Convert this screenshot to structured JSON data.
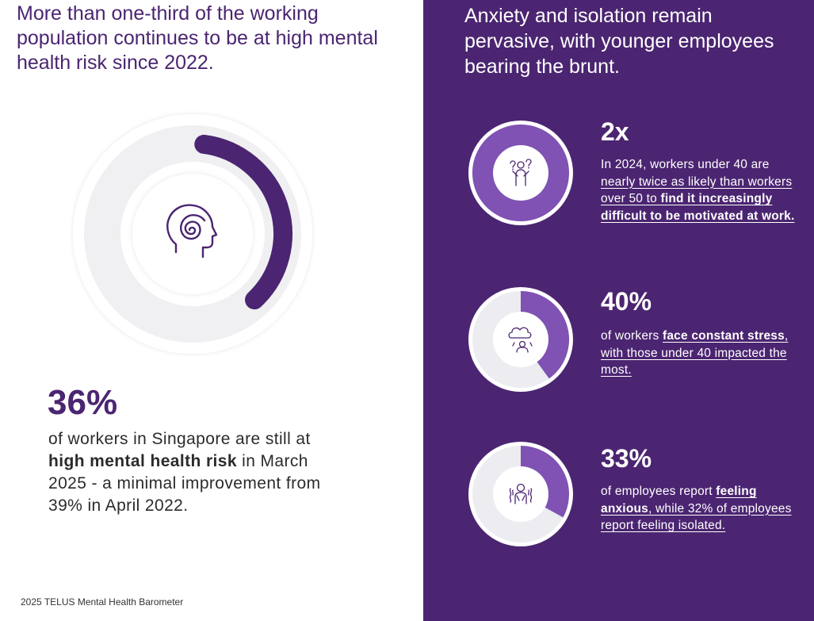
{
  "left": {
    "heading": "More than one-third of the working population continues to be at high mental health risk since 2022.",
    "stat_value": "36%",
    "stat_fraction": 0.36,
    "desc_pre": "of workers in Singapore are still at ",
    "desc_bold": "high mental health risk",
    "desc_post": " in March 2025 - a minimal improvement from 39% in April 2022.",
    "icon": "head-swirl-icon"
  },
  "right": {
    "heading": "Anxiety and isolation remain pervasive, with younger employees bearing the brunt.",
    "items": [
      {
        "value": "2x",
        "fraction": 1.0,
        "icon": "confused-person-icon",
        "t1": "In 2024, workers under 40 are ",
        "t2": "nearly twice as likely than workers over 50 to ",
        "t3": "find it increasingly difficult to be motivated at work."
      },
      {
        "value": "40%",
        "fraction": 0.4,
        "icon": "stressed-cloud-person-icon",
        "t1": "of workers ",
        "t2": "face constant stress",
        "t3": ", with those under 40 impacted the most."
      },
      {
        "value": "33%",
        "fraction": 0.33,
        "icon": "anxious-person-icon",
        "t1": "of employees report ",
        "t2": "feeling anxious",
        "t3": ", while 32% of employees report feeling isolated."
      }
    ]
  },
  "source": "2025 TELUS Mental Health Barometer",
  "colors": {
    "purple_dark": "#4b2571",
    "purple_arc": "#7f52b3",
    "ring_light": "#ececf1",
    "white": "#ffffff"
  }
}
